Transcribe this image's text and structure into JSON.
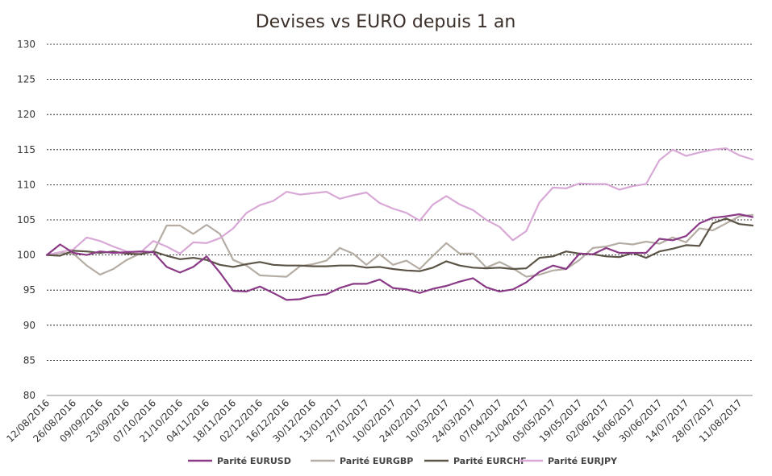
{
  "chart_data": {
    "type": "line",
    "title": "Devises vs EURO depuis 1 an",
    "xlabel": "",
    "ylabel": "",
    "ylim": [
      80,
      130
    ],
    "yticks": [
      80,
      85,
      90,
      95,
      100,
      105,
      110,
      115,
      120,
      125,
      130
    ],
    "grid": true,
    "legend_position": "bottom",
    "x": [
      "12/08/2016",
      "19/08/2016",
      "26/08/2016",
      "02/09/2016",
      "09/09/2016",
      "16/09/2016",
      "23/09/2016",
      "30/09/2016",
      "07/10/2016",
      "14/10/2016",
      "21/10/2016",
      "28/10/2016",
      "04/11/2016",
      "11/11/2016",
      "18/11/2016",
      "25/11/2016",
      "02/12/2016",
      "09/12/2016",
      "16/12/2016",
      "23/12/2016",
      "30/12/2016",
      "06/01/2017",
      "13/01/2017",
      "20/01/2017",
      "27/01/2017",
      "03/02/2017",
      "10/02/2017",
      "17/02/2017",
      "24/02/2017",
      "03/03/2017",
      "10/03/2017",
      "17/03/2017",
      "24/03/2017",
      "31/03/2017",
      "07/04/2017",
      "14/04/2017",
      "21/04/2017",
      "28/04/2017",
      "05/05/2017",
      "12/05/2017",
      "19/05/2017",
      "26/05/2017",
      "02/06/2017",
      "09/06/2017",
      "16/06/2017",
      "23/06/2017",
      "30/06/2017",
      "07/07/2017",
      "14/07/2017",
      "21/07/2017",
      "28/07/2017",
      "04/08/2017",
      "11/08/2017",
      "18/08/2017"
    ],
    "xtick_labels": [
      "12/08/2016",
      "26/08/2016",
      "09/09/2016",
      "23/09/2016",
      "07/10/2016",
      "21/10/2016",
      "04/11/2016",
      "18/11/2016",
      "02/12/2016",
      "16/12/2016",
      "30/12/2016",
      "13/01/2017",
      "27/01/2017",
      "10/02/2017",
      "24/02/2017",
      "10/03/2017",
      "24/03/2017",
      "07/04/2017",
      "21/04/2017",
      "05/05/2017",
      "19/05/2017",
      "02/06/2017",
      "16/06/2017",
      "30/06/2017",
      "14/07/2017",
      "28/07/2017",
      "11/08/2017"
    ],
    "series": [
      {
        "name": "Parité EURUSD",
        "color": "#8a3a86",
        "values": [
          100,
          101.5,
          100.3,
          100,
          100.5,
          100.3,
          100.4,
          100.5,
          100.4,
          98.3,
          97.5,
          98.3,
          99.8,
          97.5,
          94.9,
          94.8,
          95.5,
          94.6,
          93.6,
          93.7,
          94.2,
          94.4,
          95.3,
          95.9,
          95.9,
          96.5,
          95.3,
          95.1,
          94.6,
          95.2,
          95.6,
          96.2,
          96.7,
          95.4,
          94.8,
          95.1,
          96.1,
          97.6,
          98.5,
          98.0,
          100.2,
          100.1,
          101.0,
          100.3,
          100.3,
          100.3,
          102.3,
          102.1,
          102.7,
          104.5,
          105.3,
          105.5,
          105.8,
          105.4
        ]
      },
      {
        "name": "Parité EURGBP",
        "color": "#b5ada4",
        "values": [
          100,
          100.3,
          100.2,
          98.5,
          97.2,
          98.0,
          99.3,
          100.2,
          100.4,
          104.2,
          104.2,
          103.0,
          104.3,
          103.0,
          99.3,
          98.5,
          97.1,
          97.0,
          96.9,
          98.4,
          98.7,
          99.2,
          101.0,
          100.2,
          98.6,
          100.1,
          98.6,
          99.2,
          98.0,
          99.9,
          101.7,
          100.2,
          100.2,
          98.2,
          99.0,
          98.1,
          96.9,
          97.2,
          97.8,
          98.0,
          99.3,
          101.0,
          101.2,
          101.7,
          101.5,
          101.9,
          101.6,
          102.5,
          101.8,
          103.8,
          103.5,
          104.5,
          105.5,
          105.7
        ]
      },
      {
        "name": "Parité EURCHF",
        "color": "#5c5446",
        "values": [
          100,
          99.9,
          100.6,
          100.5,
          100.3,
          100.5,
          100.2,
          100.1,
          100.5,
          99.9,
          99.4,
          99.6,
          99.3,
          98.6,
          98.3,
          98.7,
          99.0,
          98.6,
          98.5,
          98.5,
          98.4,
          98.4,
          98.5,
          98.5,
          98.2,
          98.3,
          98.0,
          97.8,
          97.7,
          98.2,
          99.1,
          98.5,
          98.2,
          98.1,
          98.2,
          98.0,
          98.1,
          99.6,
          99.8,
          100.5,
          100.2,
          100.1,
          99.8,
          99.7,
          100.3,
          99.6,
          100.5,
          100.9,
          101.4,
          101.3,
          104.5,
          105.2,
          104.4,
          104.2
        ]
      },
      {
        "name": "Parité EURJPY",
        "color": "#d8a9d6",
        "values": [
          100,
          100.4,
          100.8,
          102.5,
          102.0,
          101.2,
          100.5,
          100.3,
          102.0,
          101.2,
          100.2,
          101.8,
          101.7,
          102.4,
          103.8,
          106.0,
          107.1,
          107.7,
          109.0,
          108.6,
          108.8,
          109.0,
          108.0,
          108.5,
          108.9,
          107.4,
          106.6,
          106.0,
          104.9,
          107.2,
          108.4,
          107.2,
          106.4,
          105.0,
          104.0,
          102.1,
          103.4,
          107.5,
          109.6,
          109.5,
          110.2,
          110.1,
          110.1,
          109.3,
          109.8,
          110.1,
          113.5,
          115.0,
          114.1,
          114.6,
          115.0,
          115.2,
          114.2,
          113.6
        ]
      }
    ]
  }
}
